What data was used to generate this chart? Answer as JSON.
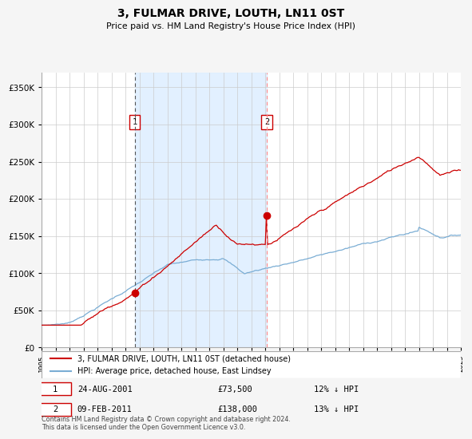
{
  "title": "3, FULMAR DRIVE, LOUTH, LN11 0ST",
  "subtitle": "Price paid vs. HM Land Registry's House Price Index (HPI)",
  "hpi_label": "HPI: Average price, detached house, East Lindsey",
  "property_label": "3, FULMAR DRIVE, LOUTH, LN11 0ST (detached house)",
  "sale1_date": "24-AUG-2001",
  "sale1_price": 73500,
  "sale1_pct": "12% ↓ HPI",
  "sale2_date": "09-FEB-2011",
  "sale2_price": 138000,
  "sale2_pct": "13% ↓ HPI",
  "hpi_color": "#7aadd4",
  "property_color": "#cc0000",
  "plot_bg": "#ffffff",
  "shade_color": "#ddeeff",
  "footer": "Contains HM Land Registry data © Crown copyright and database right 2024.\nThis data is licensed under the Open Government Licence v3.0.",
  "ylim": [
    0,
    370000
  ],
  "yticks": [
    0,
    50000,
    100000,
    150000,
    200000,
    250000,
    300000,
    350000
  ],
  "start_year": 1995,
  "end_year": 2025,
  "sale1_year": 2001.65,
  "sale2_year": 2011.1
}
